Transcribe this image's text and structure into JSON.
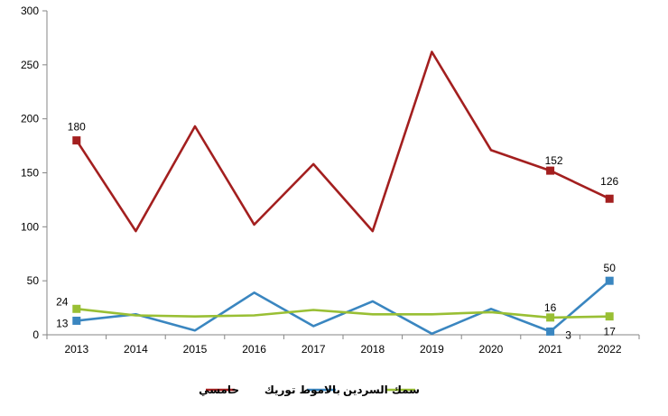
{
  "chart_data": {
    "type": "line",
    "title": "",
    "xlabel": "",
    "ylabel": "",
    "x": [
      "2013",
      "2014",
      "2015",
      "2016",
      "2017",
      "2018",
      "2019",
      "2020",
      "2021",
      "2022"
    ],
    "ylim": [
      0,
      300
    ],
    "yticks": [
      0,
      50,
      100,
      150,
      200,
      250,
      300
    ],
    "grid": false,
    "legend_position": "bottom",
    "series": [
      {
        "name": "حامسي",
        "color": "#a31f1f",
        "values": [
          180,
          96,
          193,
          102,
          158,
          96,
          262,
          171,
          152,
          126
        ],
        "marked_indices": [
          0,
          8,
          9
        ],
        "labels": [
          {
            "index": 0,
            "text": "180"
          },
          {
            "index": 8,
            "text": "152"
          },
          {
            "index": 9,
            "text": "126"
          }
        ]
      },
      {
        "name": "بالاموط توريك",
        "color": "#3a86c0",
        "values": [
          13,
          19,
          4,
          39,
          8,
          31,
          1,
          24,
          3,
          50
        ],
        "marked_indices": [
          0,
          8,
          9
        ],
        "labels": [
          {
            "index": 0,
            "text": "13"
          },
          {
            "index": 8,
            "text": "3"
          },
          {
            "index": 9,
            "text": "50"
          }
        ]
      },
      {
        "name": "سمك السردين",
        "color": "#99bf34",
        "values": [
          24,
          18,
          17,
          18,
          23,
          19,
          19,
          21,
          16,
          17
        ],
        "marked_indices": [
          0,
          8,
          9
        ],
        "labels": [
          {
            "index": 0,
            "text": "24"
          },
          {
            "index": 8,
            "text": "16"
          },
          {
            "index": 9,
            "text": "17"
          }
        ]
      }
    ]
  }
}
